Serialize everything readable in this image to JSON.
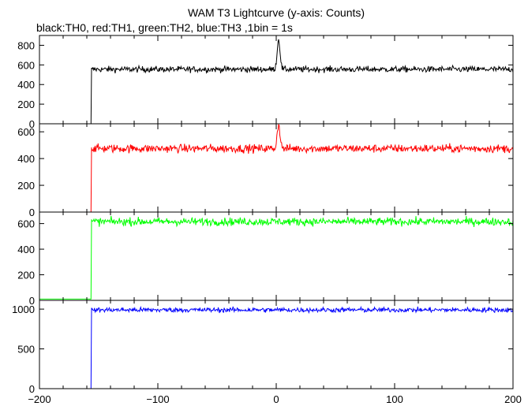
{
  "chart_data": {
    "type": "line",
    "title": "WAM T3 Lightcurve (y-axis: Counts)",
    "subtitle": "black:TH0, red:TH1, green:TH2, blue:TH3 ,1bin = 1s",
    "xlim": [
      -200,
      200
    ],
    "x_ticks": [
      -200,
      -100,
      0,
      100,
      200
    ],
    "grid": false,
    "legend": "none (colors described in subtitle)",
    "panels": [
      {
        "series": "TH0",
        "color": "#000000",
        "ylim": [
          0,
          900
        ],
        "y_ticks": [
          0,
          200,
          400,
          600,
          800
        ],
        "onset_x": -156,
        "pre_level": 0,
        "post_level": 555,
        "noise": 22,
        "peak": {
          "x": 2,
          "value": 860
        }
      },
      {
        "series": "TH1",
        "color": "#ff0000",
        "ylim": [
          0,
          660
        ],
        "y_ticks": [
          0,
          200,
          400,
          600
        ],
        "onset_x": -156,
        "pre_level": 0,
        "post_level": 475,
        "noise": 22,
        "peak": {
          "x": 2,
          "value": 655
        }
      },
      {
        "series": "TH2",
        "color": "#00ff00",
        "ylim": [
          0,
          690
        ],
        "y_ticks": [
          0,
          200,
          400,
          600
        ],
        "onset_x": -156,
        "pre_level": 10,
        "post_level": 615,
        "noise": 22,
        "peak": null
      },
      {
        "series": "TH3",
        "color": "#0000ff",
        "ylim": [
          0,
          1110
        ],
        "y_ticks": [
          0,
          500,
          1000
        ],
        "onset_x": -156,
        "pre_level": 0,
        "post_level": 990,
        "noise": 22,
        "peak": null
      }
    ]
  }
}
